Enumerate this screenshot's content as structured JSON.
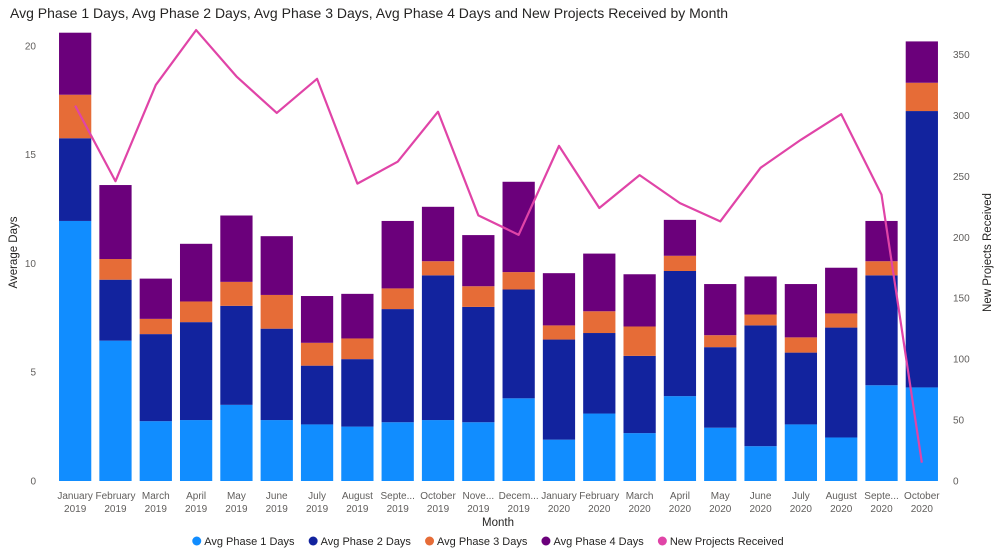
{
  "chart_data": {
    "type": "bar",
    "stacked": true,
    "title": "Avg Phase 1 Days, Avg Phase 2 Days, Avg Phase 3 Days, Avg Phase 4 Days and New Projects Received by Month",
    "xlabel": "Month",
    "ylabel": "Average Days",
    "y2label": "New Projects Received",
    "ylim": [
      0,
      21
    ],
    "y2lim": [
      0,
      375
    ],
    "yticks": [
      0,
      5,
      10,
      15,
      20
    ],
    "y2ticks": [
      0,
      50,
      100,
      150,
      200,
      250,
      300,
      350
    ],
    "categories": [
      [
        "January",
        "2019"
      ],
      [
        "February",
        "2019"
      ],
      [
        "March",
        "2019"
      ],
      [
        "April",
        "2019"
      ],
      [
        "May",
        "2019"
      ],
      [
        "June",
        "2019"
      ],
      [
        "July",
        "2019"
      ],
      [
        "August",
        "2019"
      ],
      [
        "Septe...",
        "2019"
      ],
      [
        "October",
        "2019"
      ],
      [
        "Nove...",
        "2019"
      ],
      [
        "Decem...",
        "2019"
      ],
      [
        "January",
        "2020"
      ],
      [
        "February",
        "2020"
      ],
      [
        "March",
        "2020"
      ],
      [
        "April",
        "2020"
      ],
      [
        "May",
        "2020"
      ],
      [
        "June",
        "2020"
      ],
      [
        "July",
        "2020"
      ],
      [
        "August",
        "2020"
      ],
      [
        "Septe...",
        "2020"
      ],
      [
        "October",
        "2020"
      ]
    ],
    "series": [
      {
        "name": "Avg Phase 1 Days",
        "type": "bar",
        "color": "#118DFF",
        "values": [
          11.95,
          6.45,
          2.75,
          2.8,
          3.5,
          2.8,
          2.6,
          2.5,
          2.7,
          2.8,
          2.7,
          3.8,
          1.9,
          3.1,
          2.2,
          3.9,
          2.45,
          1.6,
          2.6,
          2.0,
          4.4,
          4.3
        ]
      },
      {
        "name": "Avg Phase 2 Days",
        "type": "bar",
        "color": "#12239E",
        "values": [
          3.8,
          2.8,
          4.0,
          4.5,
          4.55,
          4.2,
          2.7,
          3.1,
          5.2,
          6.65,
          5.3,
          5.0,
          4.6,
          3.7,
          3.55,
          5.75,
          3.7,
          5.55,
          3.3,
          5.05,
          5.05,
          12.7
        ]
      },
      {
        "name": "Avg Phase 3 Days",
        "type": "bar",
        "color": "#E66C37",
        "values": [
          2.0,
          0.95,
          0.7,
          0.95,
          1.1,
          1.55,
          1.05,
          0.95,
          0.95,
          0.65,
          0.95,
          0.8,
          0.65,
          1.0,
          1.35,
          0.7,
          0.55,
          0.5,
          0.7,
          0.65,
          0.65,
          1.3
        ]
      },
      {
        "name": "Avg Phase 4 Days",
        "type": "bar",
        "color": "#6B007B",
        "values": [
          2.85,
          3.4,
          1.85,
          2.65,
          3.05,
          2.7,
          2.15,
          2.05,
          3.1,
          2.5,
          2.35,
          4.15,
          2.4,
          2.65,
          2.4,
          1.65,
          2.35,
          1.75,
          2.45,
          2.1,
          1.85,
          1.9
        ]
      },
      {
        "name": "New Projects Received",
        "type": "line",
        "axis": "secondary",
        "color": "#E044A7",
        "values": [
          308,
          246,
          325,
          370,
          332,
          302,
          330,
          244,
          262,
          303,
          218,
          202,
          275,
          224,
          251,
          228,
          213,
          257,
          280,
          301,
          235,
          15
        ]
      }
    ],
    "legend_position": "bottom-center",
    "gridlines": false
  }
}
